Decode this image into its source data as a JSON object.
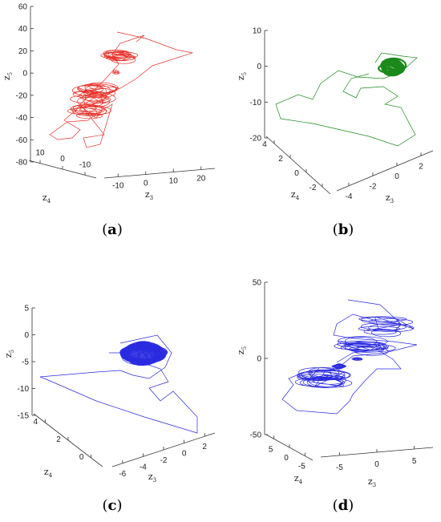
{
  "chart_data": [
    {
      "type": "line3d",
      "panel": "a",
      "caption": "a",
      "series_color": "#e8322a",
      "x_label": "z",
      "x_sub": "3",
      "y_label": "z",
      "y_sub": "4",
      "z_label": "z",
      "z_sub": "5",
      "x_ticks": [
        "-10",
        "0",
        "10",
        "20"
      ],
      "y_ticks": [
        "10",
        "0",
        "-10"
      ],
      "z_ticks": [
        "60",
        "40",
        "20",
        "0",
        "-20",
        "-40",
        "-60",
        "-80"
      ],
      "zlim": [
        -80,
        60
      ]
    },
    {
      "type": "line3d",
      "panel": "b",
      "caption": "b",
      "series_color": "#1b8a1b",
      "x_label": "z",
      "x_sub": "3",
      "y_label": "z",
      "y_sub": "4",
      "z_label": "z",
      "z_sub": "5",
      "x_ticks": [
        "-4",
        "-2",
        "0",
        "2"
      ],
      "y_ticks": [
        "4",
        "2",
        "0",
        "-2"
      ],
      "z_ticks": [
        "10",
        "0",
        "-10",
        "-20"
      ],
      "zlim": [
        -20,
        10
      ]
    },
    {
      "type": "line3d",
      "panel": "c",
      "caption": "c",
      "series_color": "#2a2ae0",
      "x_label": "z",
      "x_sub": "3",
      "y_label": "z",
      "y_sub": "4",
      "z_label": "z",
      "z_sub": "5",
      "x_ticks": [
        "-6",
        "-4",
        "-2",
        "0",
        "2"
      ],
      "y_ticks": [
        "4",
        "2",
        "0"
      ],
      "z_ticks": [
        "5",
        "0",
        "-5",
        "-10",
        "-15"
      ],
      "zlim": [
        -15,
        5
      ]
    },
    {
      "type": "line3d",
      "panel": "d",
      "caption": "d",
      "series_color": "#2a2ae0",
      "x_label": "z",
      "x_sub": "3",
      "y_label": "z",
      "y_sub": "4",
      "z_label": "z",
      "z_sub": "5",
      "x_ticks": [
        "-5",
        "0",
        "5"
      ],
      "y_ticks": [
        "5",
        "0",
        "-5"
      ],
      "z_ticks": [
        "50",
        "0",
        "-50"
      ],
      "zlim": [
        -50,
        50
      ]
    }
  ]
}
